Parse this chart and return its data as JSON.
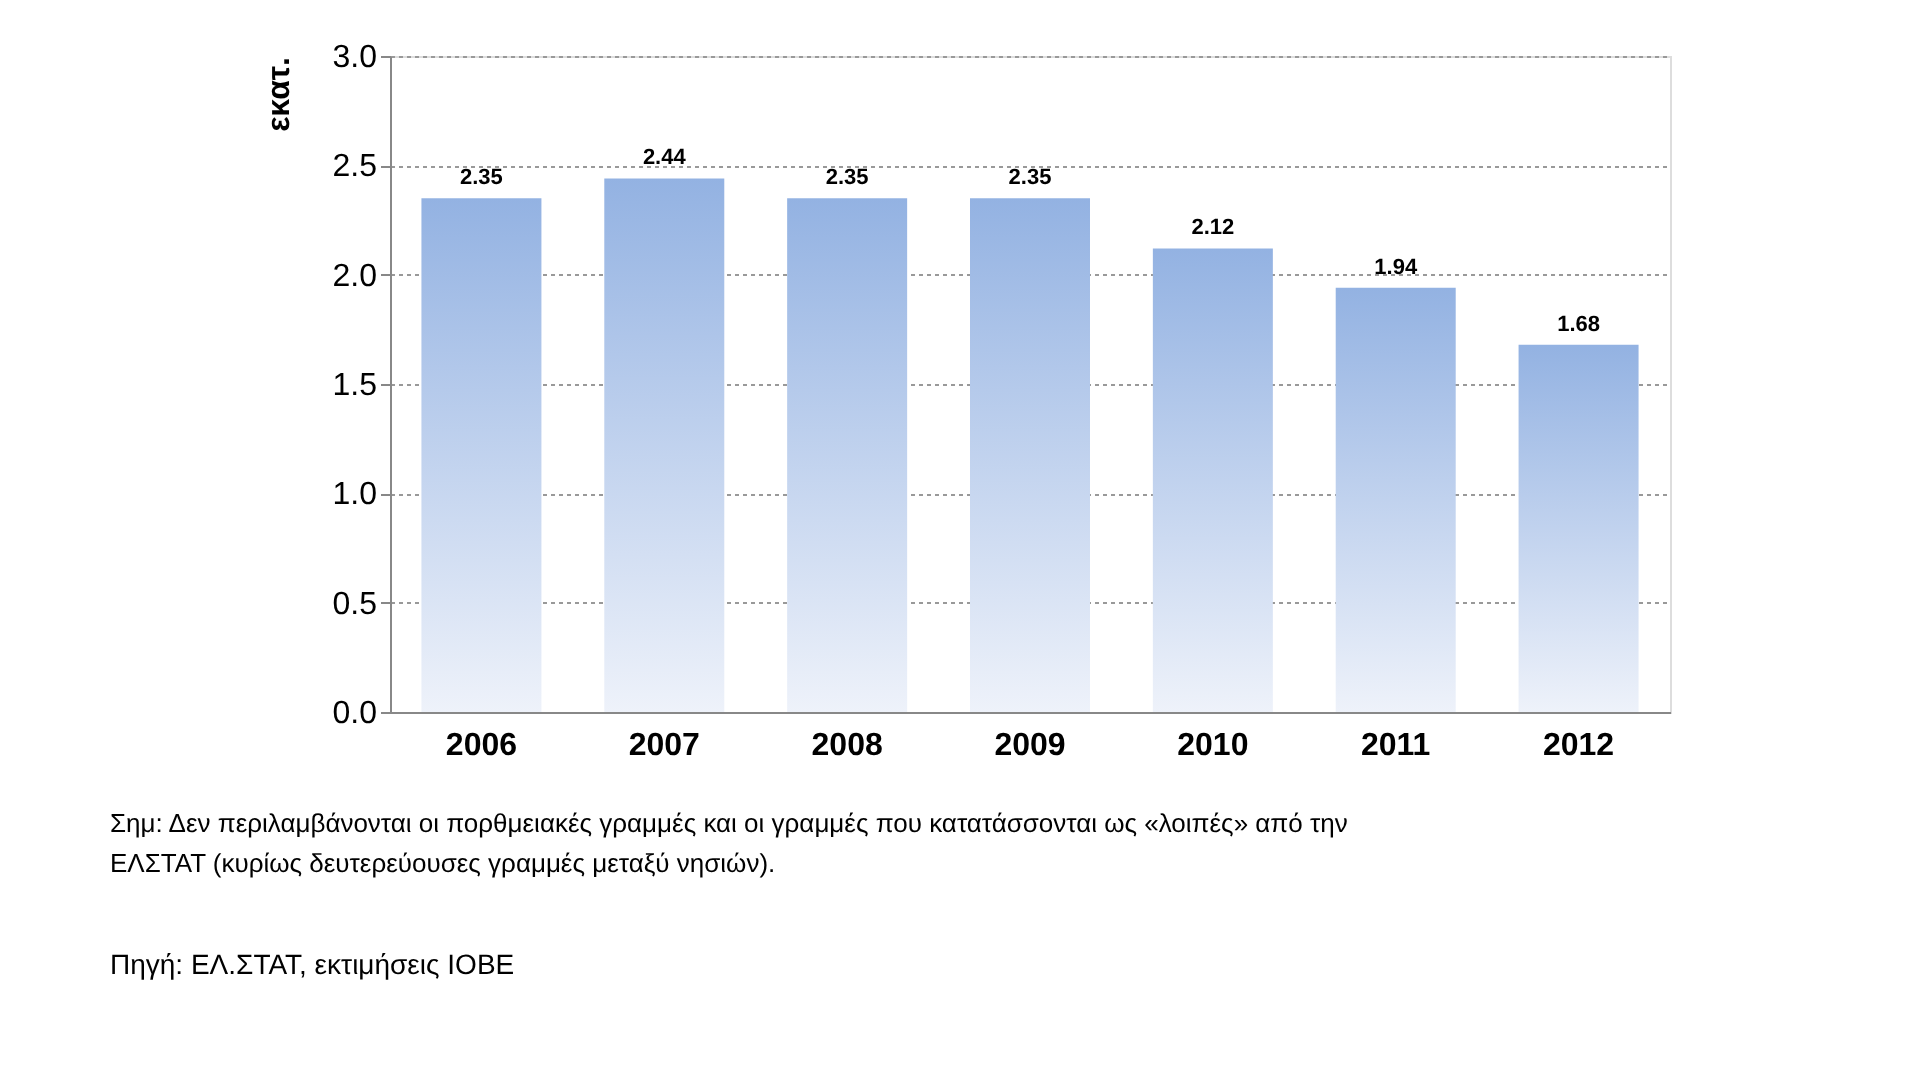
{
  "chart_data": {
    "type": "bar",
    "ylabel": "εκατ.",
    "categories": [
      "2006",
      "2007",
      "2008",
      "2009",
      "2010",
      "2011",
      "2012"
    ],
    "values": [
      2.35,
      2.44,
      2.35,
      2.35,
      2.12,
      1.94,
      1.68
    ],
    "color": "#93b2e2",
    "data_labels": true,
    "grid": "y",
    "ylim": [
      0,
      3
    ],
    "yticks": [
      {
        "value": 0,
        "label": "0.0"
      },
      {
        "value": 0.5,
        "label": "0.5"
      },
      {
        "value": 1,
        "label": "1.0"
      },
      {
        "value": 1.5,
        "label": "1.5"
      },
      {
        "value": 2,
        "label": "2.0"
      },
      {
        "value": 2.5,
        "label": "2.5"
      },
      {
        "value": 3,
        "label": "3.0"
      }
    ],
    "annotations": [
      "Σημ: Δεν περιλαμβάνονται οι πορθμειακές γραμμές και οι γραμμές που κατατάσσονται ως «λοιπές» από την ΕΛΣΤΑΤ (κυρίως δευτερεύουσες γραμμές μεταξύ νησιών).",
      "Πηγή: ΕΛ.ΣΤΑΤ, εκτιμήσεις ΙΟΒΕ"
    ]
  }
}
